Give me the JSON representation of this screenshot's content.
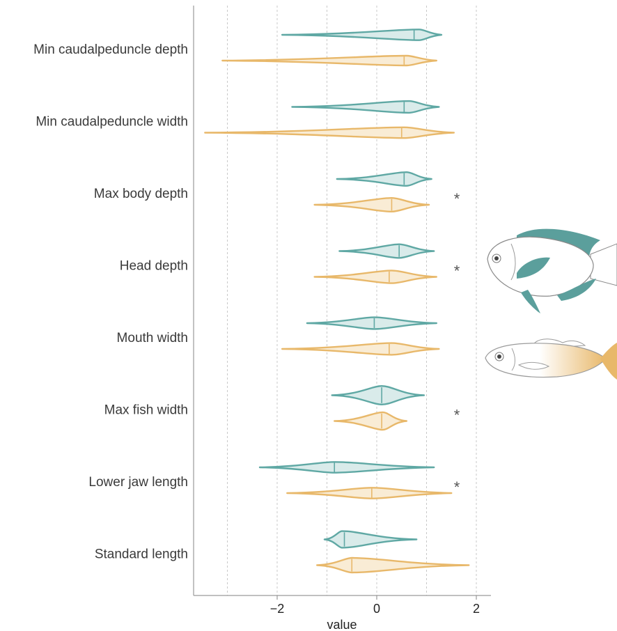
{
  "chart_data": {
    "type": "violin",
    "xlabel": "value",
    "xlim": [
      -3.7,
      2.25
    ],
    "xticks": [
      -2,
      0,
      2
    ],
    "xtick_labels": [
      "−2",
      "0",
      "2"
    ],
    "grid_x": [
      -3,
      -2,
      -1,
      0,
      1,
      2
    ],
    "grid": true,
    "colors": {
      "teal": "#5fa8a4",
      "orange": "#e8b86a"
    },
    "traits": [
      {
        "name": "Min caudalpeduncle depth",
        "significant": false,
        "star": "",
        "teal": {
          "min": -1.9,
          "max": 1.3,
          "median": 0.75,
          "mode": 0.85,
          "w": 0.55
        },
        "orange": {
          "min": -3.1,
          "max": 1.2,
          "median": 0.55,
          "mode": 0.6,
          "w": 0.5
        }
      },
      {
        "name": "Min caudalpeduncle width",
        "significant": false,
        "star": "",
        "teal": {
          "min": -1.7,
          "max": 1.25,
          "median": 0.55,
          "mode": 0.65,
          "w": 0.6
        },
        "orange": {
          "min": -3.45,
          "max": 1.55,
          "median": 0.5,
          "mode": 0.55,
          "w": 0.55
        }
      },
      {
        "name": "Max body depth",
        "significant": true,
        "star": "*",
        "teal": {
          "min": -0.8,
          "max": 1.1,
          "median": 0.55,
          "mode": 0.6,
          "w": 0.7
        },
        "orange": {
          "min": -1.25,
          "max": 1.05,
          "median": 0.3,
          "mode": 0.3,
          "w": 0.7
        }
      },
      {
        "name": "Head depth",
        "significant": true,
        "star": "*",
        "teal": {
          "min": -0.75,
          "max": 1.15,
          "median": 0.45,
          "mode": 0.45,
          "w": 0.7
        },
        "orange": {
          "min": -1.25,
          "max": 1.2,
          "median": 0.25,
          "mode": 0.3,
          "w": 0.65
        }
      },
      {
        "name": "Mouth width",
        "significant": false,
        "star": "",
        "teal": {
          "min": -1.4,
          "max": 1.2,
          "median": -0.05,
          "mode": -0.05,
          "w": 0.6
        },
        "orange": {
          "min": -1.9,
          "max": 1.25,
          "median": 0.25,
          "mode": 0.3,
          "w": 0.6
        }
      },
      {
        "name": "Max fish width",
        "significant": true,
        "star": "*",
        "teal": {
          "min": -0.9,
          "max": 0.95,
          "median": 0.1,
          "mode": 0.1,
          "w": 0.95
        },
        "orange": {
          "min": -0.85,
          "max": 0.6,
          "median": 0.1,
          "mode": 0.12,
          "w": 0.9
        }
      },
      {
        "name": "Lower jaw length",
        "significant": true,
        "star": "*",
        "teal": {
          "min": -2.35,
          "max": 1.15,
          "median": -0.85,
          "mode": -0.85,
          "w": 0.55
        },
        "orange": {
          "min": -1.8,
          "max": 1.5,
          "median": -0.1,
          "mode": -0.1,
          "w": 0.55
        }
      },
      {
        "name": "Standard length",
        "significant": false,
        "star": "",
        "teal": {
          "min": -1.05,
          "max": 0.8,
          "median": -0.65,
          "mode": -0.7,
          "w": 0.85
        },
        "orange": {
          "min": -1.2,
          "max": 1.85,
          "median": -0.5,
          "mode": -0.5,
          "w": 0.75
        }
      }
    ]
  },
  "illustrations": {
    "top_fish": "deep-bodied-teal-fish-illustration",
    "bottom_fish": "elongate-orange-fish-illustration"
  }
}
